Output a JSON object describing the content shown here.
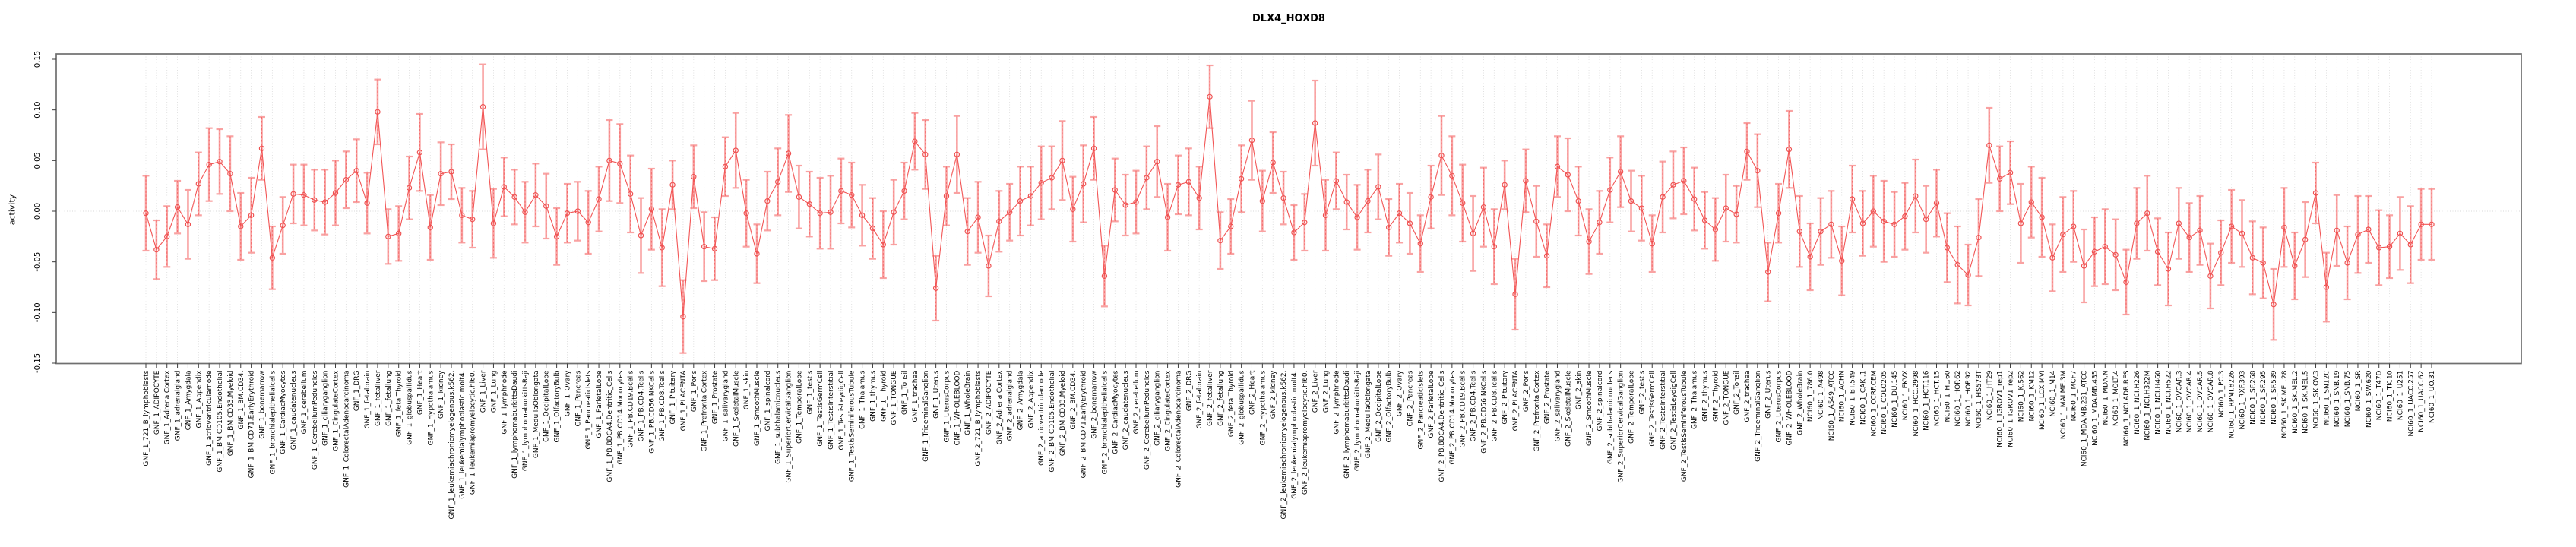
{
  "chart_data": {
    "type": "line",
    "title": "DLX4_HOXD8",
    "xlabel": "",
    "ylabel": "activity",
    "ylim": [
      -0.15,
      0.15
    ],
    "yticks": [
      0.15,
      0.1,
      0.05,
      0.0,
      -0.05,
      -0.1,
      -0.15
    ],
    "legend_position": "none",
    "grid": "vertical dotted line per category, dotted horizontal line at zero",
    "marker": "open-circle",
    "error_bars": true,
    "x_tick_label_rotation": -90,
    "series_name": "activity",
    "style": {
      "line_color": "#f25555",
      "marker_color": "#ee4f4f",
      "error_color": "#f9a2a2",
      "grid_color": "#dadada",
      "frame_color": "#6f6f6f",
      "tick_color": "#3c3c3c",
      "text_color": "#000000",
      "background": "#ffffff"
    },
    "categories": [
      "GNF_1_721_B_lymphoblasts",
      "GNF_1_ADIPOCYTE",
      "GNF_1_AdrenalCortex",
      "GNF_1_adrenalgland",
      "GNF_1_Amygdala",
      "GNF_1_Appendix",
      "GNF_1_atrioventricularnode",
      "GNF_1_BM.CD105.Endothelial",
      "GNF_1_BM.CD33.Myeloid",
      "GNF_1_BM.CD34.",
      "GNF_1_BM.CD71.EarlyErythroid",
      "GNF_1_bonemarrow",
      "GNF_1_bronchialepithelialcells",
      "GNF_1_CardiacMyocytes",
      "GNF_1_caudatenucleus",
      "GNF_1_cerebellum",
      "GNF_1_CerebellumPeduncles",
      "GNF_1_ciliaryganglion",
      "GNF_1_CingulateCortex",
      "GNF_1_ColorectalAdenocarcinoma",
      "GNF_1_DRG",
      "GNF_1_fetalbrain",
      "GNF_1_fetalliver",
      "GNF_1_fetallung",
      "GNF_1_fetalThyroid",
      "GNF_1_globuspallidus",
      "GNF_1_Heart",
      "GNF_1_Hypothalamus",
      "GNF_1_kidney",
      "GNF_1_leukemiachronicmyelogenous.k562.",
      "GNF_1_leukemialymphoblastic.molt4.",
      "GNF_1_leukemiapromyelocytic.hl60.",
      "GNF_1_Liver",
      "GNF_1_Lung",
      "GNF_1_lymphnode",
      "GNF_1_lymphomaburkittsDaudi",
      "GNF_1_lymphomaburkittsRaji",
      "GNF_1_MedullaOblongata",
      "GNF_1_OccipitalLobe",
      "GNF_1_OlfactoryBulb",
      "GNF_1_Ovary",
      "GNF_1_Pancreas",
      "GNF_1_PancreaticIslets",
      "GNF_1_ParietalLobe",
      "GNF_1_PB.BDCA4.Dentritic_Cells",
      "GNF_1_PB.CD14.Monocytes",
      "GNF_1_PB.CD19.Bcells",
      "GNF_1_PB.CD4.Tcells",
      "GNF_1_PB.CD56.NKCells",
      "GNF_1_PB.CD8.Tcells",
      "GNF_1_Pituitary",
      "GNF_1_PLACENTA",
      "GNF_1_Pons",
      "GNF_1_PrefrontalCortex",
      "GNF_1_Prostate",
      "GNF_1_salivarygland",
      "GNF_1_SkeletalMuscle",
      "GNF_1_skin",
      "GNF_1_SmoothMuscle",
      "GNF_1_spinalcord",
      "GNF_1_subthalamicnucleus",
      "GNF_1_SuperiorCervicalGanglion",
      "GNF_1_TemporalLobe",
      "GNF_1_testis",
      "GNF_1_TestisGermCell",
      "GNF_1_TestisInterstitial",
      "GNF_1_TestisLeydigCell",
      "GNF_1_TestisSeminiferousTubule",
      "GNF_1_Thalamus",
      "GNF_1_thymus",
      "GNF_1_Thyroid",
      "GNF_1_TONGUE",
      "GNF_1_Tonsil",
      "GNF_1_trachea",
      "GNF_1_TrigeminalGanglion",
      "GNF_1_Uterus",
      "GNF_1_UterusCorpus",
      "GNF_1_WHOLEBLOOD",
      "GNF_1_WholeBrain",
      "GNF_2_721_B_lymphoblasts",
      "GNF_2_ADIPOCYTE",
      "GNF_2_AdrenalCortex",
      "GNF_2_adrenalgland",
      "GNF_2_Amygdala",
      "GNF_2_Appendix",
      "GNF_2_atrioventricularnode",
      "GNF_2_BM.CD105.Endothelial",
      "GNF_2_BM.CD33.Myeloid",
      "GNF_2_BM.CD34.",
      "GNF_2_BM.CD71.EarlyErythroid",
      "GNF_2_bonemarrow",
      "GNF_2_bronchialepithelialcells",
      "GNF_2_CardiacMyocytes",
      "GNF_2_caudatenucleus",
      "GNF_2_cerebellum",
      "GNF_2_CerebellumPeduncles",
      "GNF_2_ciliaryganglion",
      "GNF_2_CingulateCortex",
      "GNF_2_ColorectalAdenocarcinoma",
      "GNF_2_DRG",
      "GNF_2_fetalbrain",
      "GNF_2_fetalliver",
      "GNF_2_fetallung",
      "GNF_2_fetalThyroid",
      "GNF_2_globuspallidus",
      "GNF_2_Heart",
      "GNF_2_Hypothalamus",
      "GNF_2_kidney",
      "GNF_2_leukemiachronicmyelogenous.k562.",
      "GNF_2_leukemialymphoblastic.molt4.",
      "GNF_2_leukemiapromyelocytic.hl60.",
      "GNF_2_Liver",
      "GNF_2_Lung",
      "GNF_2_lymphnode",
      "GNF_2_lymphomaburkittsDaudi",
      "GNF_2_lymphomaburkittsRaji",
      "GNF_2_MedullaOblongata",
      "GNF_2_OccipitalLobe",
      "GNF_2_OlfactoryBulb",
      "GNF_2_Ovary",
      "GNF_2_Pancreas",
      "GNF_2_PancreaticIslets",
      "GNF_2_ParietalLobe",
      "GNF_2_PB.BDCA4.Dentritic_Cells",
      "GNF_2_PB.CD14.Monocytes",
      "GNF_2_PB.CD19.Bcells",
      "GNF_2_PB.CD4.Tcells",
      "GNF_2_PB.CD56.NKCells",
      "GNF_2_PB.CD8.Tcells",
      "GNF_2_Pituitary",
      "GNF_2_PLACENTA",
      "GNF_2_Pons",
      "GNF_2_PrefrontalCortex",
      "GNF_2_Prostate",
      "GNF_2_salivarygland",
      "GNF_2_SkeletalMuscle",
      "GNF_2_skin",
      "GNF_2_SmoothMuscle",
      "GNF_2_spinalcord",
      "GNF_2_subthalamicnucleus",
      "GNF_2_SuperiorCervicalGanglion",
      "GNF_2_TemporalLobe",
      "GNF_2_testis",
      "GNF_2_TestisGermCell",
      "GNF_2_TestisInterstitial",
      "GNF_2_TestisLeydigCell",
      "GNF_2_TestisSeminiferousTubule",
      "GNF_2_Thalamus",
      "GNF_2_thymus",
      "GNF_2_Thyroid",
      "GNF_2_TONGUE",
      "GNF_2_Tonsil",
      "GNF_2_trachea",
      "GNF_2_TrigeminalGanglion",
      "GNF_2_Uterus",
      "GNF_2_UterusCorpus",
      "GNF_2_WHOLEBLOOD",
      "GNF_2_WholeBrain",
      "NCI60_1_786.0",
      "NCI60_1_A498",
      "NCI60_1_A549_ATCC",
      "NCI60_1_ACHN",
      "NCI60_1_BT.549",
      "NCI60_1_CAKI.1",
      "NCI60_1_CCRF.CEM",
      "NCI60_1_COLO205",
      "NCI60_1_DU.145",
      "NCI60_1_EKVX",
      "NCI60_1_HCC.2998",
      "NCI60_1_HCT.116",
      "NCI60_1_HCT.15",
      "NCI60_1_HL.60",
      "NCI60_1_HOP.62",
      "NCI60_1_HOP.92",
      "NCI60_1_HS578T",
      "NCI60_1_HT29",
      "NCI60_1_IGROV1_rep1",
      "NCI60_1_IGROV1_rep2",
      "NCI60_1_K.562",
      "NCI60_1_KM12",
      "NCI60_1_LOXIMVI",
      "NCI60_1_M14",
      "NCI60_1_MALME.3M",
      "NCI60_1_MCF7",
      "NCI60_1_MDA.MB.231_ATCC",
      "NCI60_1_MDA.MB.435",
      "NCI60_1_MDA.N",
      "NCI60_1_MOLT.4",
      "NCI60_1_NCI.ADR.RES",
      "NCI60_1_NCI.H226",
      "NCI60_1_NCI.H322M",
      "NCI60_1_NCI.H460",
      "NCI60_1_NCI.H522",
      "NCI60_1_OVCAR.3",
      "NCI60_1_OVCAR.4",
      "NCI60_1_OVCAR.5",
      "NCI60_1_OVCAR.8",
      "NCI60_1_PC.3",
      "NCI60_1_RPMI.8226",
      "NCI60_1_RXF.393",
      "NCI60_1_SF.268",
      "NCI60_1_SF.295",
      "NCI60_1_SF.539",
      "NCI60_1_SK.MEL.28",
      "NCI60_1_SK.MEL.2",
      "NCI60_1_SK.MEL.5",
      "NCI60_1_SK.OV.3",
      "NCI60_1_SN12C",
      "NCI60_1_SNB.19",
      "NCI60_1_SNB.75",
      "NCI60_1_SR",
      "NCI60_1_SW.620",
      "NCI60_1_T47D",
      "NCI60_1_TK.10",
      "NCI60_1_U251",
      "NCI60_1_UACC.257",
      "NCI60_1_UACC.62",
      "NCI60_1_UO.31"
    ],
    "values": [
      -0.002,
      -0.038,
      -0.025,
      0.004,
      -0.013,
      0.027,
      0.046,
      0.049,
      0.037,
      -0.015,
      -0.004,
      0.062,
      -0.046,
      -0.014,
      0.017,
      0.016,
      0.011,
      0.009,
      0.018,
      0.031,
      0.04,
      0.008,
      0.098,
      -0.025,
      -0.022,
      0.023,
      0.058,
      -0.016,
      0.037,
      0.039,
      -0.004,
      -0.008,
      0.103,
      -0.012,
      0.024,
      0.014,
      -0.001,
      0.016,
      0.005,
      -0.025,
      -0.002,
      0.0,
      -0.011,
      0.012,
      0.05,
      0.047,
      0.017,
      -0.024,
      0.002,
      -0.036,
      0.026,
      -0.104,
      0.034,
      -0.035,
      -0.037,
      0.044,
      0.06,
      -0.002,
      -0.042,
      0.01,
      0.029,
      0.057,
      0.014,
      0.007,
      -0.002,
      -0.001,
      0.02,
      0.016,
      -0.004,
      -0.017,
      -0.033,
      -0.001,
      0.02,
      0.069,
      0.056,
      -0.076,
      0.015,
      0.056,
      -0.02,
      -0.006,
      -0.054,
      -0.01,
      -0.001,
      0.01,
      0.015,
      0.028,
      0.033,
      0.05,
      0.002,
      0.027,
      0.062,
      -0.064,
      0.021,
      0.006,
      0.009,
      0.033,
      0.049,
      -0.006,
      0.026,
      0.029,
      0.013,
      0.113,
      -0.029,
      -0.015,
      0.032,
      0.07,
      0.01,
      0.048,
      0.013,
      -0.021,
      -0.011,
      0.087,
      -0.004,
      0.03,
      0.009,
      -0.006,
      0.01,
      0.024,
      -0.016,
      -0.002,
      -0.012,
      -0.032,
      0.014,
      0.055,
      0.035,
      0.008,
      -0.022,
      0.004,
      -0.035,
      0.026,
      -0.082,
      0.03,
      -0.01,
      -0.044,
      0.044,
      0.036,
      0.01,
      -0.03,
      -0.011,
      0.021,
      0.039,
      0.01,
      0.003,
      -0.032,
      0.014,
      0.026,
      0.03,
      0.012,
      -0.009,
      -0.018,
      0.003,
      -0.003,
      0.059,
      0.04,
      -0.06,
      -0.002,
      0.061,
      -0.02,
      -0.045,
      -0.02,
      -0.013,
      -0.049,
      0.012,
      -0.012,
      0.0,
      -0.01,
      -0.013,
      -0.005,
      0.015,
      -0.008,
      0.008,
      -0.036,
      -0.053,
      -0.063,
      -0.026,
      0.065,
      0.032,
      0.038,
      -0.012,
      0.009,
      -0.006,
      -0.046,
      -0.023,
      -0.015,
      -0.054,
      -0.04,
      -0.035,
      -0.043,
      -0.07,
      -0.012,
      -0.002,
      -0.04,
      -0.057,
      -0.012,
      -0.026,
      -0.019,
      -0.064,
      -0.041,
      -0.015,
      -0.022,
      -0.046,
      -0.051,
      -0.092,
      -0.016,
      -0.054,
      -0.028,
      0.018,
      -0.075,
      -0.019,
      -0.051,
      -0.023,
      -0.018,
      -0.036,
      -0.035,
      -0.022,
      -0.033,
      -0.013,
      -0.013
    ],
    "errors": [
      0.037,
      0.029,
      0.03,
      0.026,
      0.034,
      0.031,
      0.036,
      0.032,
      0.037,
      0.033,
      0.037,
      0.031,
      0.031,
      0.028,
      0.029,
      0.03,
      0.03,
      0.032,
      0.032,
      0.028,
      0.031,
      0.03,
      0.032,
      0.027,
      0.027,
      0.031,
      0.038,
      0.032,
      0.031,
      0.027,
      0.027,
      0.028,
      0.042,
      0.034,
      0.029,
      0.027,
      0.03,
      0.031,
      0.032,
      0.028,
      0.029,
      0.029,
      0.031,
      0.032,
      0.04,
      0.039,
      0.038,
      0.037,
      0.04,
      0.038,
      0.024,
      0.036,
      0.031,
      0.034,
      0.031,
      0.029,
      0.037,
      0.033,
      0.029,
      0.029,
      0.033,
      0.038,
      0.031,
      0.032,
      0.035,
      0.036,
      0.032,
      0.032,
      0.03,
      0.03,
      0.033,
      0.032,
      0.028,
      0.028,
      0.034,
      0.032,
      0.029,
      0.038,
      0.033,
      0.035,
      0.03,
      0.03,
      0.028,
      0.034,
      0.029,
      0.036,
      0.031,
      0.039,
      0.032,
      0.038,
      0.031,
      0.03,
      0.031,
      0.03,
      0.031,
      0.031,
      0.035,
      0.033,
      0.029,
      0.033,
      0.031,
      0.031,
      0.028,
      0.027,
      0.033,
      0.039,
      0.03,
      0.03,
      0.026,
      0.027,
      0.028,
      0.042,
      0.035,
      0.028,
      0.027,
      0.032,
      0.031,
      0.032,
      0.028,
      0.029,
      0.03,
      0.028,
      0.031,
      0.039,
      0.039,
      0.038,
      0.037,
      0.039,
      0.037,
      0.024,
      0.035,
      0.031,
      0.035,
      0.031,
      0.03,
      0.036,
      0.034,
      0.032,
      0.031,
      0.032,
      0.035,
      0.03,
      0.032,
      0.028,
      0.035,
      0.033,
      0.033,
      0.031,
      0.028,
      0.031,
      0.033,
      0.028,
      0.028,
      0.036,
      0.029,
      0.029,
      0.038,
      0.035,
      0.033,
      0.033,
      0.033,
      0.034,
      0.033,
      0.032,
      0.035,
      0.04,
      0.032,
      0.033,
      0.036,
      0.033,
      0.033,
      0.034,
      0.038,
      0.03,
      0.038,
      0.037,
      0.032,
      0.031,
      0.039,
      0.035,
      0.039,
      0.033,
      0.037,
      0.035,
      0.036,
      0.034,
      0.037,
      0.035,
      0.032,
      0.035,
      0.037,
      0.033,
      0.036,
      0.035,
      0.034,
      0.034,
      0.032,
      0.032,
      0.036,
      0.033,
      0.036,
      0.035,
      0.035,
      0.039,
      0.033,
      0.037,
      0.03,
      0.034,
      0.035,
      0.036,
      0.038,
      0.033,
      0.037,
      0.031,
      0.036,
      0.038,
      0.035,
      0.035
    ]
  }
}
